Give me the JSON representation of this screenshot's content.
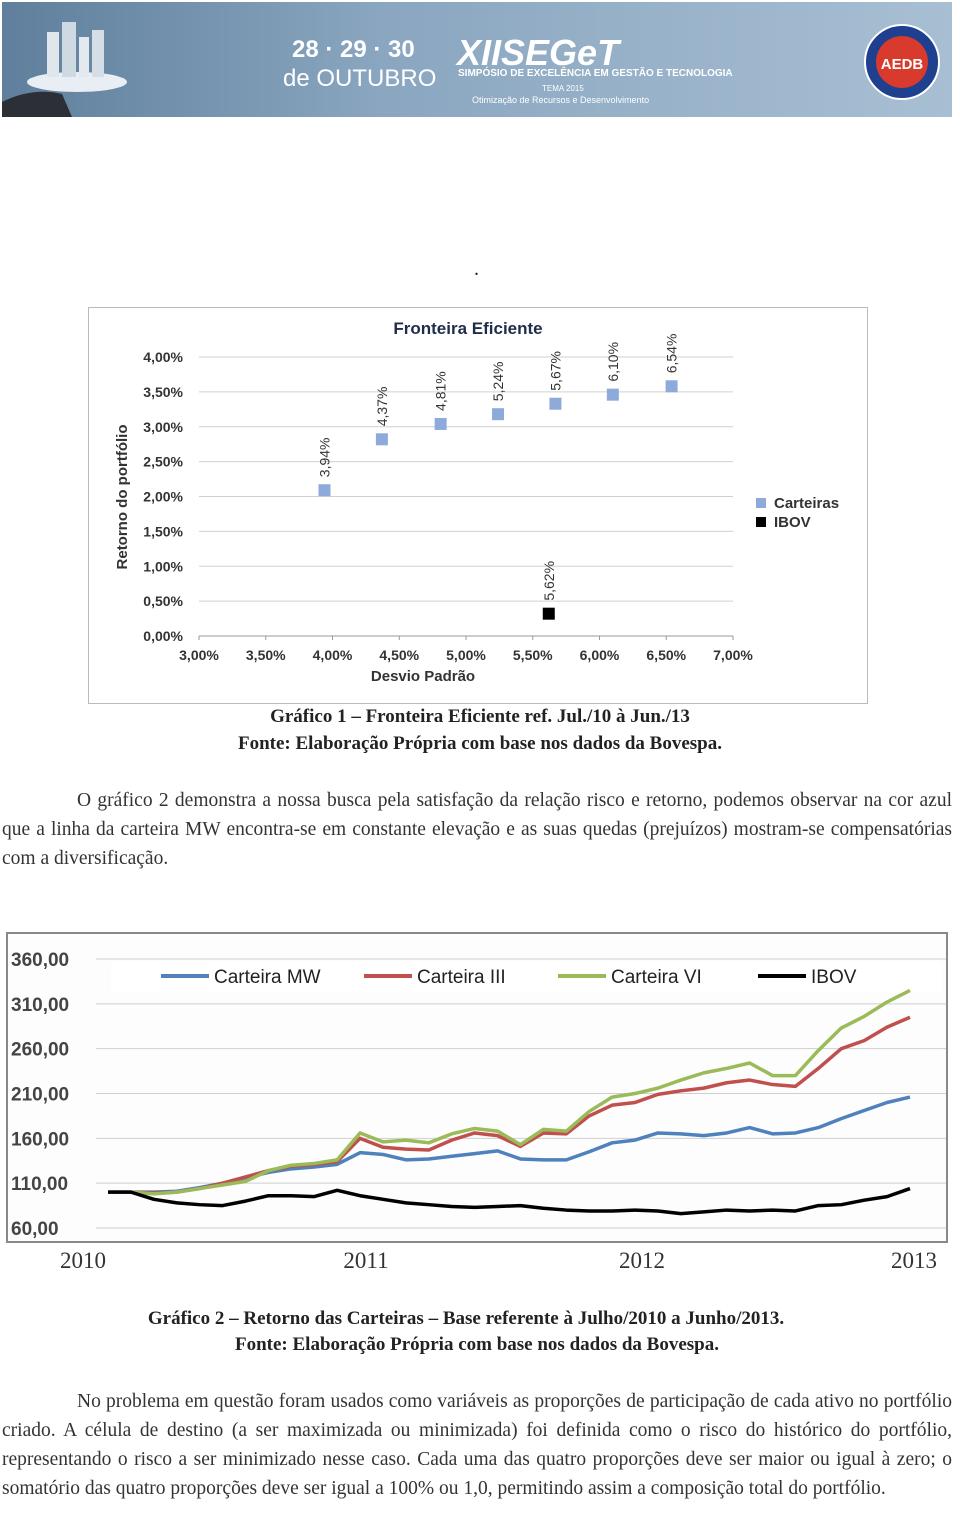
{
  "header": {
    "dates": "28 · 29 · 30",
    "month": "de OUTUBRO",
    "event": "XIISEGeT",
    "event_subtitle": "SIMPÓSIO DE EXCELÊNCIA EM GESTÃO E TECNOLOGIA",
    "theme": "TEMA 2015",
    "theme_text": "Otimização de Recursos e Desenvolvimento",
    "logo": "AEDB"
  },
  "mark": ".",
  "chart_data": [
    {
      "type": "scatter",
      "title": "Fronteira Eficiente",
      "xlabel": "Desvio Padrão",
      "ylabel": "Retorno do portfólio",
      "xlim": [
        3,
        7
      ],
      "ylim": [
        0,
        4
      ],
      "xticks": [
        {
          "value": 3,
          "label": "3,00%"
        },
        {
          "value": 3.5,
          "label": "3,50%"
        },
        {
          "value": 4,
          "label": "4,00%"
        },
        {
          "value": 4.5,
          "label": "4,50%"
        },
        {
          "value": 5,
          "label": "5,00%"
        },
        {
          "value": 5.5,
          "label": "5,50%"
        },
        {
          "value": 6,
          "label": "6,00%"
        },
        {
          "value": 6.5,
          "label": "6,50%"
        },
        {
          "value": 7,
          "label": "7,00%"
        }
      ],
      "yticks": [
        {
          "value": 0,
          "label": "0,00%"
        },
        {
          "value": 0.5,
          "label": "0,50%"
        },
        {
          "value": 1,
          "label": "1,00%"
        },
        {
          "value": 1.5,
          "label": "1,50%"
        },
        {
          "value": 2,
          "label": "2,00%"
        },
        {
          "value": 2.5,
          "label": "2,50%"
        },
        {
          "value": 3,
          "label": "3,00%"
        },
        {
          "value": 3.5,
          "label": "3,50%"
        },
        {
          "value": 4,
          "label": "4,00%"
        }
      ],
      "grid": true,
      "legend": "right",
      "series": [
        {
          "name": "Carteiras",
          "color": "#8eaadb",
          "x": [
            3.94,
            4.37,
            4.81,
            5.24,
            5.67,
            6.1,
            6.54
          ],
          "x_labels": [
            "3,94%",
            "4,37%",
            "4,81%",
            "5,24%",
            "5,67%",
            "6,10%",
            "6,54%"
          ],
          "values": [
            2.09,
            2.82,
            3.04,
            3.18,
            3.33,
            3.46,
            3.58
          ]
        },
        {
          "name": "IBOV",
          "color": "#000000",
          "x": [
            5.62
          ],
          "x_labels": [
            "5,62%"
          ],
          "values": [
            0.32
          ]
        }
      ]
    },
    {
      "type": "line",
      "ylim": [
        60,
        360
      ],
      "yticks": [
        {
          "value": 60,
          "label": "60,00"
        },
        {
          "value": 110,
          "label": "110,00"
        },
        {
          "value": 160,
          "label": "160,00"
        },
        {
          "value": 210,
          "label": "210,00"
        },
        {
          "value": 260,
          "label": "260,00"
        },
        {
          "value": 310,
          "label": "310,00"
        },
        {
          "value": 360,
          "label": "360,00"
        }
      ],
      "grid": true,
      "legend": "top",
      "categories": [
        null,
        null,
        null,
        null,
        null,
        null,
        null,
        null,
        null,
        null,
        null,
        null,
        null,
        null,
        null,
        null,
        null,
        null,
        null,
        null,
        null,
        null,
        null,
        null,
        null,
        null,
        null,
        null,
        null,
        null,
        null,
        null,
        null,
        null,
        null,
        null
      ],
      "series": [
        {
          "name": "Carteira MW",
          "color": "#4f81bd",
          "values": [
            100,
            100,
            100,
            101,
            105,
            110,
            116,
            122,
            126,
            128,
            131,
            144,
            142,
            136,
            137,
            140,
            143,
            146,
            137,
            136,
            136,
            145,
            155,
            158,
            166,
            165,
            163,
            166,
            172,
            165,
            166,
            172,
            182,
            191,
            200,
            206
          ]
        },
        {
          "name": "Carteira III",
          "color": "#c0504d",
          "values": [
            100,
            100,
            99,
            100,
            104,
            110,
            117,
            124,
            129,
            131,
            134,
            160,
            150,
            148,
            147,
            158,
            166,
            163,
            151,
            166,
            165,
            185,
            197,
            200,
            209,
            213,
            216,
            222,
            225,
            220,
            218,
            238,
            260,
            269,
            284,
            295
          ]
        },
        {
          "name": "Carteira VI",
          "color": "#9bbb59",
          "values": [
            100,
            100,
            98,
            100,
            104,
            108,
            112,
            124,
            130,
            132,
            136,
            166,
            156,
            158,
            155,
            165,
            171,
            168,
            153,
            170,
            168,
            190,
            206,
            210,
            216,
            225,
            233,
            238,
            244,
            230,
            230,
            258,
            283,
            296,
            312,
            325
          ]
        },
        {
          "name": "IBOV",
          "color": "#000000",
          "values": [
            100,
            100,
            92,
            88,
            86,
            85,
            90,
            96,
            96,
            95,
            102,
            96,
            92,
            88,
            86,
            84,
            83,
            84,
            85,
            82,
            80,
            79,
            79,
            80,
            79,
            76,
            78,
            80,
            79,
            80,
            79,
            85,
            86,
            91,
            95,
            104
          ]
        }
      ]
    }
  ],
  "figure1": {
    "caption": "Gráfico 1 – Fronteira Eficiente ref. Jul./10 à Jun./13",
    "source": "Fonte: Elaboração Própria com base nos dados da Bovespa."
  },
  "paragraphs": [
    "O gráfico 2 demonstra a nossa busca pela satisfação da relação risco e retorno, podemos observar na cor azul que a linha da carteira MW encontra-se em constante elevação e as suas quedas (prejuízos) mostram-se compensatórias com a diversificação.",
    "No problema em questão foram usados como variáveis as proporções de participação de cada ativo no portfólio criado. A célula de destino (a ser maximizada ou minimizada) foi definida como o risco do histórico do portfólio, representando o risco a ser minimizado nesse caso. Cada uma das quatro proporções deve ser maior ou igual à zero; o somatório das quatro proporções deve ser igual a 100% ou 1,0, permitindo assim a composição total do portfólio."
  ],
  "figure2": {
    "years": [
      "2010",
      "2011",
      "2012",
      "2013"
    ],
    "caption": "Gráfico 2 – Retorno das Carteiras – Base referente à Julho/2010 a Junho/2013.",
    "source": "Fonte: Elaboração Própria com base nos dados da Bovespa."
  }
}
